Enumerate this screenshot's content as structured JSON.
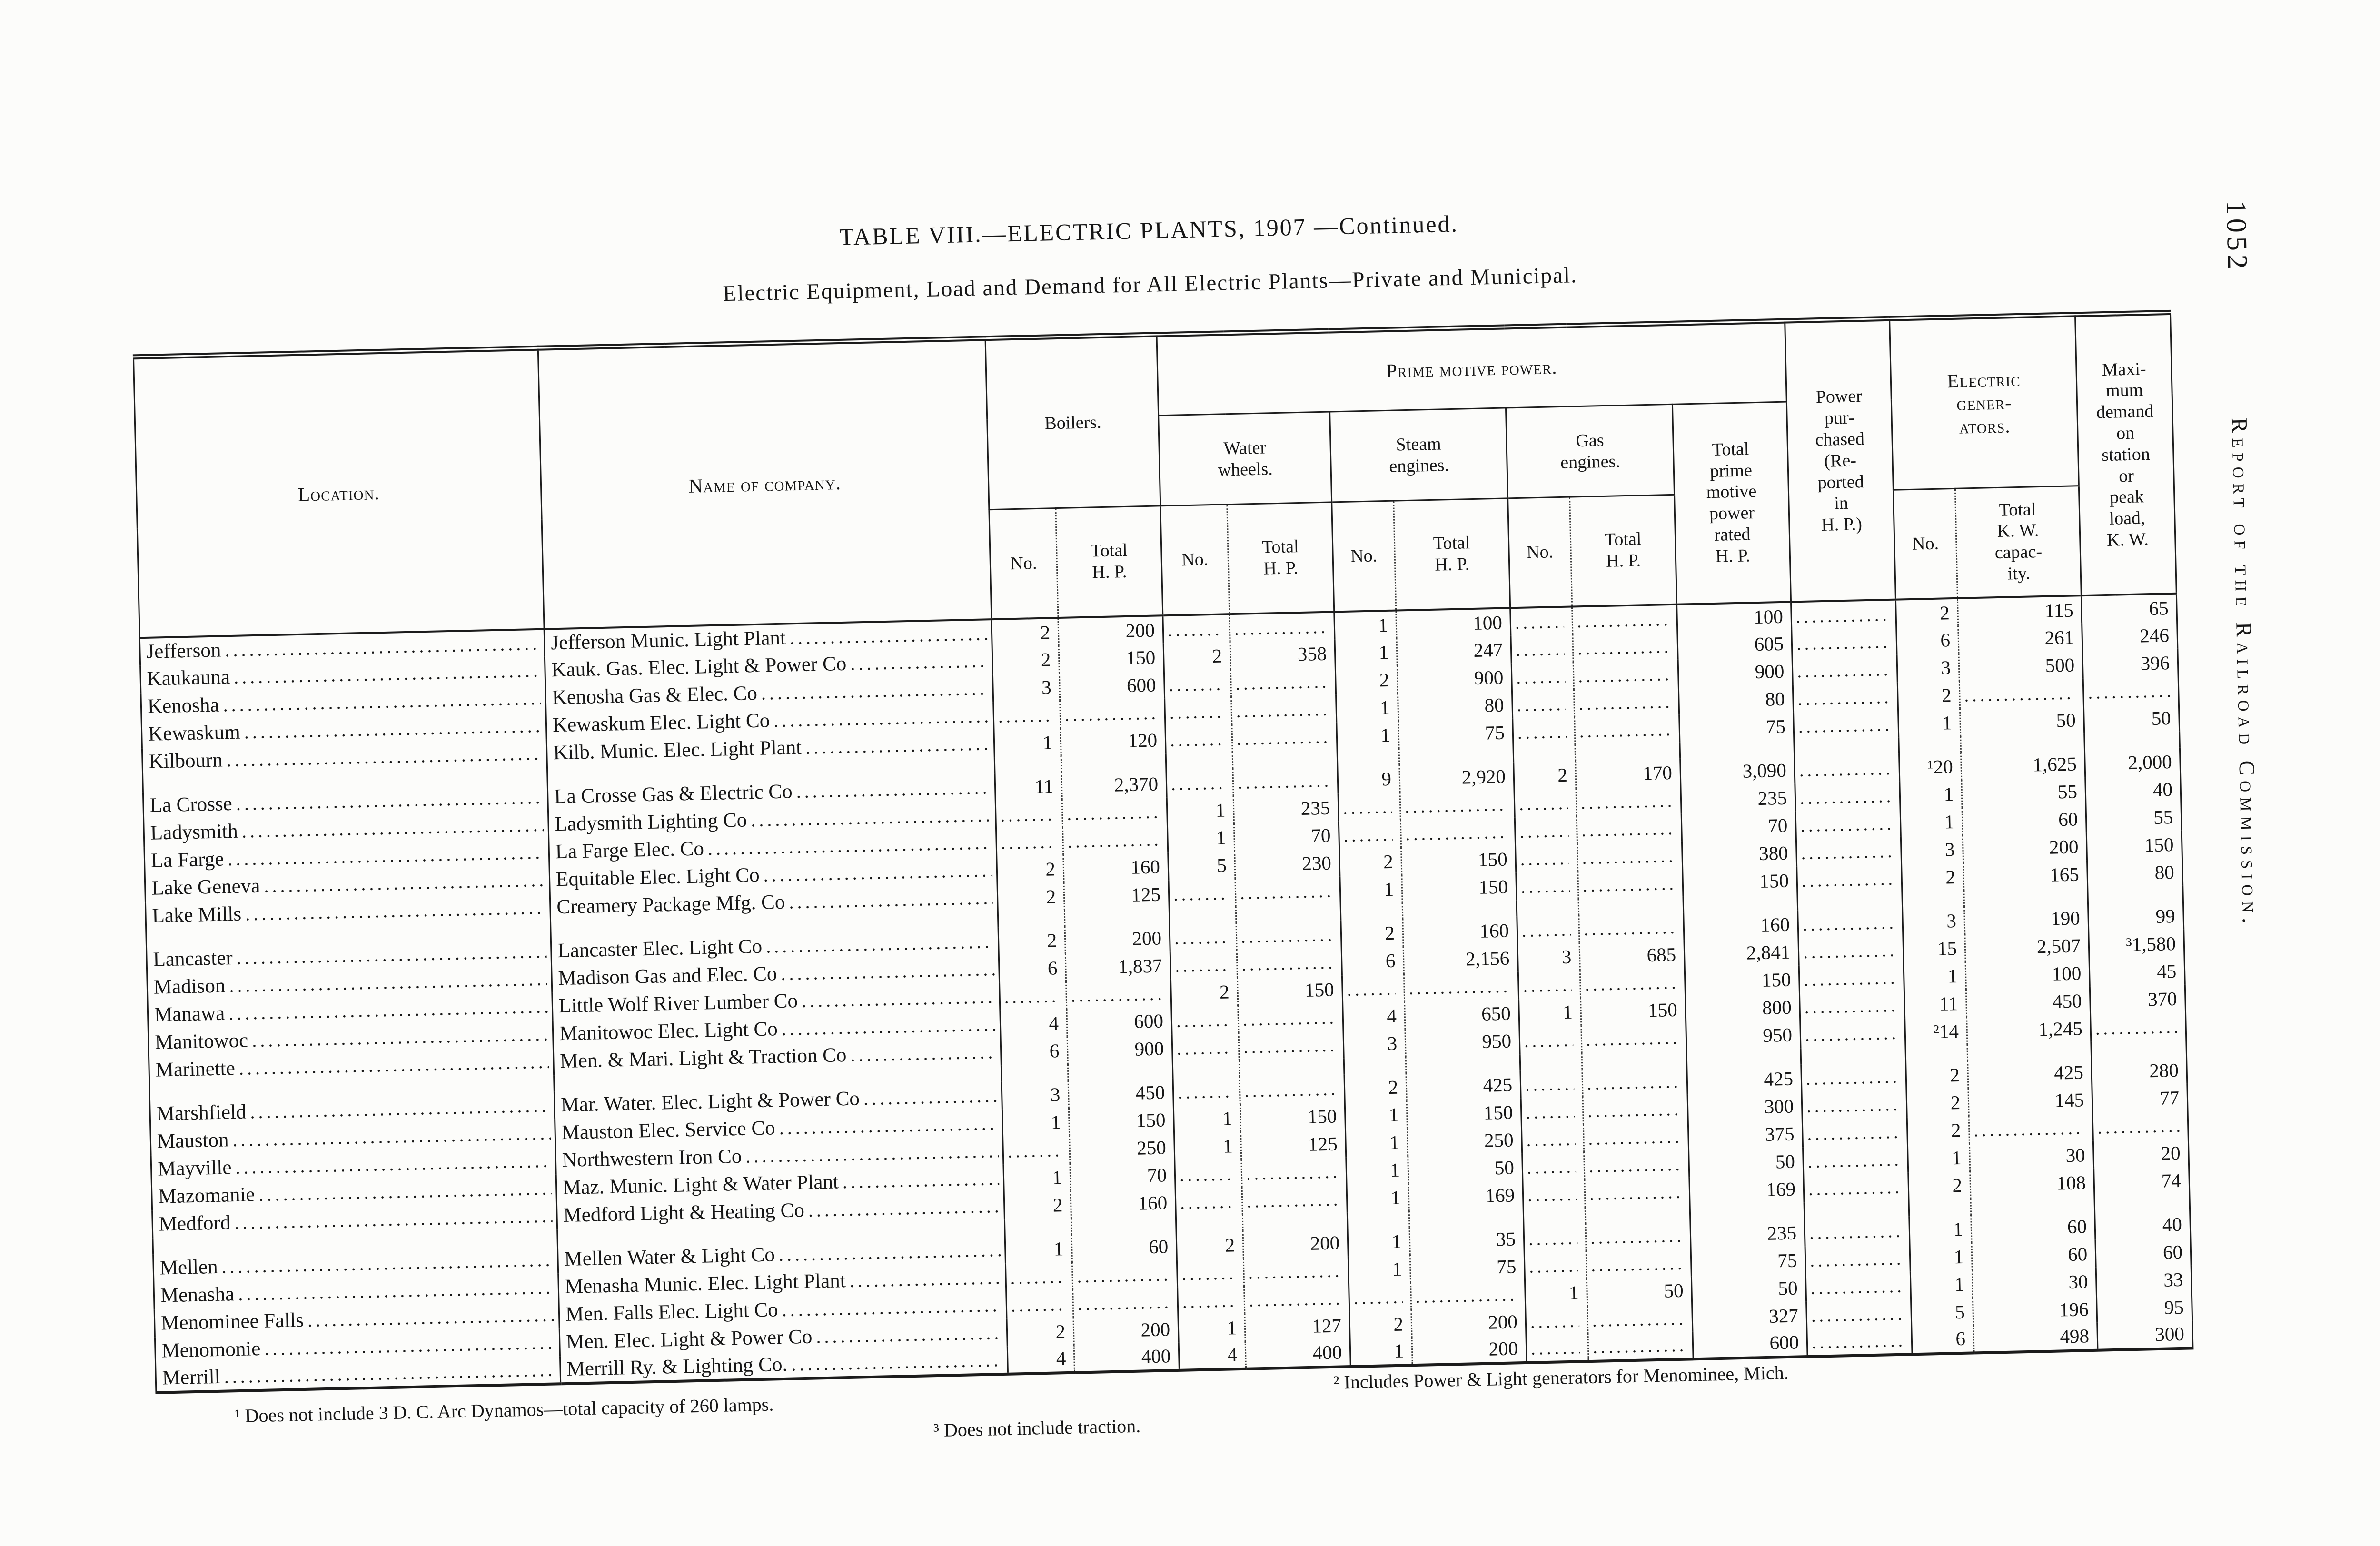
{
  "page": {
    "title": "TABLE VIII.—ELECTRIC PLANTS, 1907 —Continued.",
    "subtitle": "Electric Equipment, Load and Demand for All Electric Plants—Private and Municipal.",
    "page_number": "1052",
    "margin_text": "Report of the Railroad Commission."
  },
  "table": {
    "headers": {
      "location": "Location.",
      "company": "Name of company.",
      "boilers": "Boilers.",
      "prime_motive_power": "Prime motive power.",
      "water_wheels": "Water\nwheels.",
      "steam_engines": "Steam\nengines.",
      "gas_engines": "Gas\nengines.",
      "no": "No.",
      "total_hp": "Total\nH. P.",
      "total_prime": "Total\nprime\nmotive\npower\nrated\nH. P.",
      "power_purchased": "Power\npur-\nchased\n(Re-\nported\nin\nH. P.)",
      "electric_generators": "Electric\ngener-\nators.",
      "gen_no": "No.",
      "total_kw": "Total\nK. W.\ncapac-\nity.",
      "max_demand": "Maxi-\nmum\ndemand\non\nstation\nor\npeak\nload,\nK. W."
    },
    "groups": [
      [
        [
          "Jefferson",
          "Jefferson Munic. Light Plant",
          "2",
          "200",
          "",
          "",
          "1",
          "100",
          "",
          "",
          "100",
          "",
          "2",
          "115",
          "65"
        ],
        [
          "Kaukauna",
          "Kauk. Gas. Elec. Light & Power Co",
          "2",
          "150",
          "2",
          "358",
          "1",
          "247",
          "",
          "",
          "605",
          "",
          "6",
          "261",
          "246"
        ],
        [
          "Kenosha",
          "Kenosha Gas & Elec. Co",
          "3",
          "600",
          "",
          "",
          "2",
          "900",
          "",
          "",
          "900",
          "",
          "3",
          "500",
          "396"
        ],
        [
          "Kewaskum",
          "Kewaskum Elec. Light Co",
          "",
          "",
          "",
          "",
          "1",
          "80",
          "",
          "",
          "80",
          "",
          "2",
          "",
          ""
        ],
        [
          "Kilbourn",
          "Kilb. Munic. Elec. Light Plant",
          "1",
          "120",
          "",
          "",
          "1",
          "75",
          "",
          "",
          "75",
          "",
          "1",
          "50",
          "50"
        ]
      ],
      [
        [
          "La Crosse",
          "La Crosse Gas & Electric Co",
          "11",
          "2,370",
          "",
          "",
          "9",
          "2,920",
          "2",
          "170",
          "3,090",
          "",
          "¹20",
          "1,625",
          "2,000"
        ],
        [
          "Ladysmith",
          "Ladysmith Lighting Co",
          "",
          "",
          "1",
          "235",
          "",
          "",
          "",
          "",
          "235",
          "",
          "1",
          "55",
          "40"
        ],
        [
          "La Farge",
          "La Farge Elec. Co",
          "",
          "",
          "1",
          "70",
          "",
          "",
          "",
          "",
          "70",
          "",
          "1",
          "60",
          "55"
        ],
        [
          "Lake Geneva",
          "Equitable Elec. Light Co",
          "2",
          "160",
          "5",
          "230",
          "2",
          "150",
          "",
          "",
          "380",
          "",
          "3",
          "200",
          "150"
        ],
        [
          "Lake Mills",
          "Creamery Package Mfg. Co",
          "2",
          "125",
          "",
          "",
          "1",
          "150",
          "",
          "",
          "150",
          "",
          "2",
          "165",
          "80"
        ]
      ],
      [
        [
          "Lancaster",
          "Lancaster Elec. Light Co",
          "2",
          "200",
          "",
          "",
          "2",
          "160",
          "",
          "",
          "160",
          "",
          "3",
          "190",
          "99"
        ],
        [
          "Madison",
          "Madison Gas and Elec. Co",
          "6",
          "1,837",
          "",
          "",
          "6",
          "2,156",
          "3",
          "685",
          "2,841",
          "",
          "15",
          "2,507",
          "³1,580"
        ],
        [
          "Manawa",
          "Little Wolf River Lumber Co",
          "",
          "",
          "2",
          "150",
          "",
          "",
          "",
          "",
          "150",
          "",
          "1",
          "100",
          "45"
        ],
        [
          "Manitowoc",
          "Manitowoc Elec. Light Co",
          "4",
          "600",
          "",
          "",
          "4",
          "650",
          "1",
          "150",
          "800",
          "",
          "11",
          "450",
          "370"
        ],
        [
          "Marinette",
          "Men. & Mari. Light & Traction Co",
          "6",
          "900",
          "",
          "",
          "3",
          "950",
          "",
          "",
          "950",
          "",
          "²14",
          "1,245",
          ""
        ]
      ],
      [
        [
          "Marshfield",
          "Mar. Water. Elec. Light & Power Co",
          "3",
          "450",
          "",
          "",
          "2",
          "425",
          "",
          "",
          "425",
          "",
          "2",
          "425",
          "280"
        ],
        [
          "Mauston",
          "Mauston Elec. Service Co",
          "1",
          "150",
          "1",
          "150",
          "1",
          "150",
          "",
          "",
          "300",
          "",
          "2",
          "145",
          "77"
        ],
        [
          "Mayville",
          "Northwestern Iron Co",
          "",
          "250",
          "1",
          "125",
          "1",
          "250",
          "",
          "",
          "375",
          "",
          "2",
          "",
          ""
        ],
        [
          "Mazomanie",
          "Maz. Munic. Light & Water Plant",
          "1",
          "70",
          "",
          "",
          "1",
          "50",
          "",
          "",
          "50",
          "",
          "1",
          "30",
          "20"
        ],
        [
          "Medford",
          "Medford Light & Heating Co",
          "2",
          "160",
          "",
          "",
          "1",
          "169",
          "",
          "",
          "169",
          "",
          "2",
          "108",
          "74"
        ]
      ],
      [
        [
          "Mellen",
          "Mellen Water & Light Co",
          "1",
          "60",
          "2",
          "200",
          "1",
          "35",
          "",
          "",
          "235",
          "",
          "1",
          "60",
          "40"
        ],
        [
          "Menasha",
          "Menasha Munic. Elec. Light Plant",
          "",
          "",
          "",
          "",
          "1",
          "75",
          "",
          "",
          "75",
          "",
          "1",
          "60",
          "60"
        ],
        [
          "Menominee Falls",
          "Men. Falls Elec. Light Co",
          "",
          "",
          "",
          "",
          "",
          "",
          "1",
          "50",
          "50",
          "",
          "1",
          "30",
          "33"
        ],
        [
          "Menomonie",
          "Men. Elec. Light & Power Co",
          "2",
          "200",
          "1",
          "127",
          "2",
          "200",
          "",
          "",
          "327",
          "",
          "5",
          "196",
          "95"
        ],
        [
          "Merrill",
          "Merrill Ry. & Lighting Co.",
          "4",
          "400",
          "4",
          "400",
          "1",
          "200",
          "",
          "",
          "600",
          "",
          "6",
          "498",
          "300"
        ]
      ]
    ]
  },
  "footnotes": [
    "¹ Does not include 3 D. C. Arc Dynamos—total capacity of 260 lamps.",
    "² Includes Power & Light generators for Menominee, Mich.",
    "³ Does not include traction."
  ]
}
